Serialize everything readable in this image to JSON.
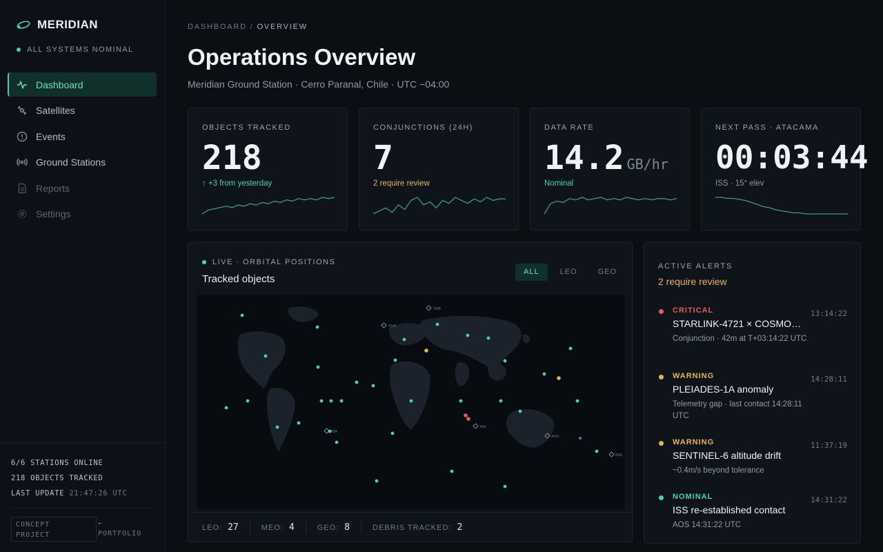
{
  "sidebar": {
    "brand": "MERIDIAN",
    "status": "ALL SYSTEMS NOMINAL",
    "nav": [
      {
        "label": "Dashboard",
        "icon": "activity-icon"
      },
      {
        "label": "Satellites",
        "icon": "satellite-icon"
      },
      {
        "label": "Events",
        "icon": "alert-circle-icon"
      },
      {
        "label": "Ground Stations",
        "icon": "broadcast-icon"
      },
      {
        "label": "Reports",
        "icon": "file-icon"
      },
      {
        "label": "Settings",
        "icon": "gear-icon"
      }
    ],
    "footer": {
      "stations": "6/6 STATIONS ONLINE",
      "objects": "218 OBJECTS TRACKED",
      "last_update_label": "LAST UPDATE",
      "last_update_time": "21:47:26 UTC",
      "concept_line1": "CONCEPT",
      "concept_line2": "PROJECT",
      "portfolio_arrow": "←",
      "portfolio": "PORTFOLIO"
    }
  },
  "header": {
    "breadcrumb_root": "DASHBOARD",
    "breadcrumb_sep": "/",
    "breadcrumb_current": "OVERVIEW",
    "title": "Operations Overview",
    "subtitle": "Meridian Ground Station · Cerro Paranal, Chile · UTC −04:00"
  },
  "colors": {
    "accent": "#4fd1a5",
    "warning": "#e7b454",
    "critical": "#e0605f"
  },
  "kpis": [
    {
      "label": "OBJECTS TRACKED",
      "value": "218",
      "unit": "",
      "note": "↑ +3 from yesterday",
      "note_color": "#4fd1a5",
      "spark": [
        4,
        7,
        8,
        9,
        10,
        9,
        11,
        10,
        12,
        11,
        13,
        12,
        14,
        13,
        15,
        14,
        16,
        15,
        16,
        15,
        17,
        16,
        17
      ]
    },
    {
      "label": "CONJUNCTIONS (24H)",
      "value": "7",
      "unit": "",
      "note": "2 require review",
      "note_color": "#e7b454",
      "spark": [
        3,
        5,
        7,
        4,
        9,
        6,
        12,
        14,
        9,
        11,
        7,
        12,
        10,
        14,
        12,
        10,
        13,
        11,
        14,
        12,
        13,
        13
      ]
    },
    {
      "label": "DATA RATE",
      "value": "14.2",
      "unit": "GB/hr",
      "note": "Nominal",
      "note_color": "#4fd1a5",
      "spark": [
        2,
        10,
        12,
        11,
        14,
        13,
        15,
        13,
        14,
        15,
        13,
        14,
        13,
        15,
        14,
        13,
        14,
        13,
        14,
        14,
        13,
        14
      ]
    },
    {
      "label": "NEXT PASS · ATACAMA",
      "value": "00:03:44",
      "unit": "",
      "note": "ISS · 15° elev",
      "note_color": "#8f9aa6",
      "spark": [
        18,
        18,
        17,
        17,
        16,
        15,
        13,
        11,
        9,
        8,
        6,
        5,
        4,
        3,
        3,
        2,
        2,
        2,
        2,
        2,
        2,
        2,
        2
      ]
    }
  ],
  "map": {
    "live_label": "LIVE · ORBITAL POSITIONS",
    "title": "Tracked objects",
    "filters": [
      "ALL",
      "LEO",
      "GEO"
    ],
    "stations": [
      "SVB",
      "DLR",
      "ATA",
      "NZL",
      "AUS",
      "ASI"
    ],
    "footer": [
      {
        "key": "LEO:",
        "value": "27"
      },
      {
        "key": "MEO:",
        "value": "4"
      },
      {
        "key": "GEO:",
        "value": "8"
      },
      {
        "key": "DEBRIS TRACKED:",
        "value": "2"
      }
    ]
  },
  "alerts": {
    "title": "ACTIVE ALERTS",
    "subtitle": "2 require review",
    "items": [
      {
        "severity": "CRITICAL",
        "color": "#e0605f",
        "time": "13:14:22",
        "name": "STARLINK-4721 × COSMOS...",
        "desc": "Conjunction · 42m at T+03:14:22 UTC"
      },
      {
        "severity": "WARNING",
        "color": "#e7b454",
        "time": "14:28:11",
        "name": "PLEIADES-1A anomaly",
        "desc": "Telemetry gap · last contact 14:28:11 UTC"
      },
      {
        "severity": "WARNING",
        "color": "#e7b454",
        "time": "11:37:19",
        "name": "SENTINEL-6 altitude drift",
        "desc": "~0.4m/s beyond tolerance"
      },
      {
        "severity": "NOMINAL",
        "color": "#4fd1a5",
        "time": "14:31:22",
        "name": "ISS re-established contact",
        "desc": "AOS 14:31:22 UTC"
      }
    ]
  }
}
